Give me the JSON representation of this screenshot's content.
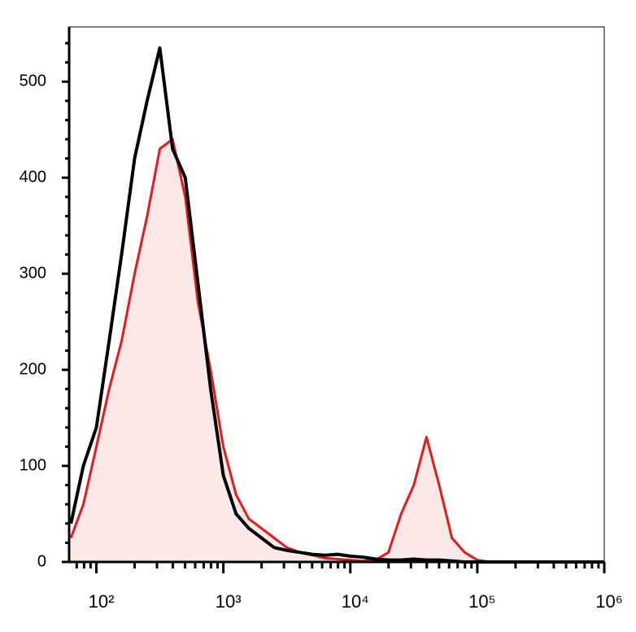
{
  "chart_data": {
    "type": "line",
    "log_x": true,
    "x": [
      63,
      79,
      100,
      126,
      158,
      200,
      251,
      316,
      398,
      501,
      631,
      794,
      1000,
      1259,
      1585,
      1995,
      2512,
      3162,
      3981,
      5012,
      6310,
      7943,
      10000,
      12589,
      15849,
      19953,
      25119,
      31623,
      39811,
      50119,
      63096,
      79433,
      100000,
      125893,
      158489,
      199526,
      251189,
      316228,
      398107,
      501187,
      630957,
      794328,
      1000000
    ],
    "series": [
      {
        "color": "#000000",
        "fill": null,
        "values": [
          40,
          100,
          140,
          230,
          320,
          420,
          480,
          535,
          430,
          400,
          290,
          180,
          90,
          50,
          35,
          25,
          15,
          12,
          10,
          8,
          7,
          8,
          6,
          5,
          3,
          2,
          2,
          3,
          2,
          2,
          1,
          0,
          0,
          0,
          0,
          0,
          0,
          0,
          0,
          0,
          0,
          0,
          0
        ]
      },
      {
        "color": "#e41a1c",
        "fill": "#fde8e8",
        "values": [
          25,
          60,
          120,
          180,
          230,
          300,
          360,
          430,
          440,
          380,
          270,
          200,
          120,
          70,
          45,
          35,
          25,
          15,
          10,
          7,
          4,
          3,
          2,
          1,
          2,
          10,
          50,
          80,
          130,
          80,
          25,
          10,
          2,
          0,
          0,
          0,
          0,
          0,
          0,
          0,
          0,
          0,
          0
        ]
      }
    ],
    "xlim": [
      61,
      1000000
    ],
    "ylim": [
      0,
      557
    ],
    "xticks": [
      {
        "value": 100,
        "label": "10²"
      },
      {
        "value": 1000,
        "label": "10³"
      },
      {
        "value": 10000,
        "label": "10⁴"
      },
      {
        "value": 100000,
        "label": "10⁵"
      },
      {
        "value": 1000000,
        "label": "10⁶"
      }
    ],
    "xminorticks": [
      70,
      80,
      90,
      200,
      300,
      400,
      500,
      600,
      700,
      800,
      900,
      2000,
      3000,
      4000,
      5000,
      6000,
      7000,
      8000,
      9000,
      20000,
      30000,
      40000,
      50000,
      60000,
      70000,
      80000,
      90000,
      200000,
      300000,
      400000,
      500000,
      600000,
      700000,
      800000,
      900000
    ],
    "yticks": [
      0,
      100,
      200,
      300,
      400,
      500
    ],
    "yminorticks": [
      20,
      40,
      60,
      80,
      120,
      140,
      160,
      180,
      220,
      240,
      260,
      280,
      320,
      340,
      360,
      380,
      420,
      440,
      460,
      480,
      520,
      540
    ]
  }
}
